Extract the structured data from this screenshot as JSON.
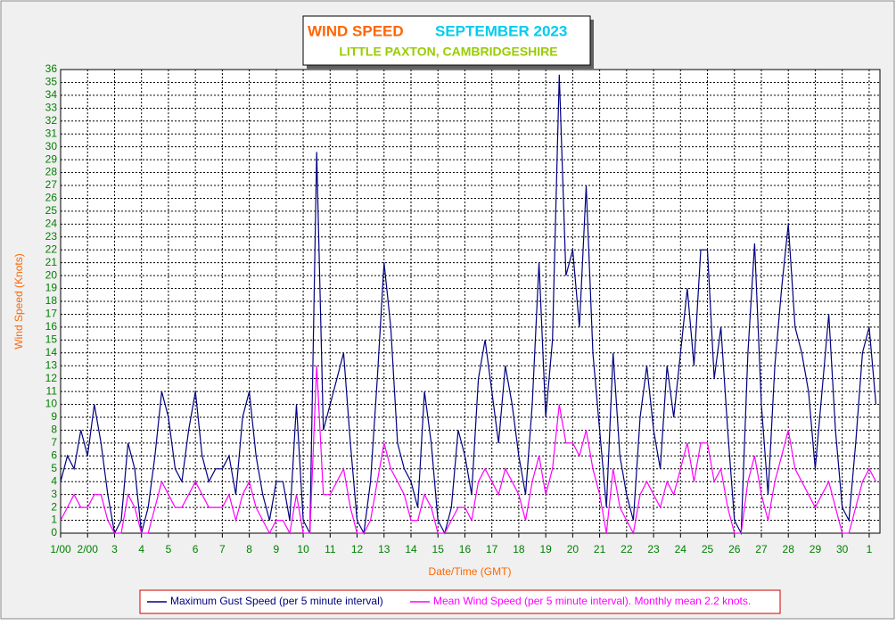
{
  "chart_data": {
    "type": "line",
    "title": "WIND SPEED",
    "subtitle": "SEPTEMBER 2023",
    "location": "LITTLE PAXTON, CAMBRIDGESHIRE",
    "ylabel": "Wind Speed (Knots)",
    "xlabel": "Date/Time (GMT)",
    "xlim": [
      0,
      30.4
    ],
    "ylim": [
      0,
      36
    ],
    "grid": true,
    "yticks": [
      0,
      1,
      2,
      3,
      4,
      5,
      6,
      7,
      8,
      9,
      10,
      11,
      12,
      13,
      14,
      15,
      16,
      17,
      18,
      19,
      20,
      21,
      22,
      23,
      24,
      25,
      26,
      27,
      28,
      29,
      30,
      31,
      32,
      33,
      34,
      35,
      36
    ],
    "xticks": [
      {
        "value": 0,
        "label": "1/00"
      },
      {
        "value": 1,
        "label": "2/00"
      },
      {
        "value": 2,
        "label": "3"
      },
      {
        "value": 3,
        "label": "4"
      },
      {
        "value": 4,
        "label": "5"
      },
      {
        "value": 5,
        "label": "6"
      },
      {
        "value": 6,
        "label": "7"
      },
      {
        "value": 7,
        "label": "8"
      },
      {
        "value": 8,
        "label": "9"
      },
      {
        "value": 9,
        "label": "10"
      },
      {
        "value": 10,
        "label": "11"
      },
      {
        "value": 11,
        "label": "12"
      },
      {
        "value": 12,
        "label": "13"
      },
      {
        "value": 13,
        "label": "14"
      },
      {
        "value": 14,
        "label": "15"
      },
      {
        "value": 15,
        "label": "16"
      },
      {
        "value": 16,
        "label": "17"
      },
      {
        "value": 17,
        "label": "18"
      },
      {
        "value": 18,
        "label": "19"
      },
      {
        "value": 19,
        "label": "20"
      },
      {
        "value": 20,
        "label": "21"
      },
      {
        "value": 21,
        "label": "22"
      },
      {
        "value": 22,
        "label": "23"
      },
      {
        "value": 23,
        "label": "24"
      },
      {
        "value": 24,
        "label": "25"
      },
      {
        "value": 25,
        "label": "26"
      },
      {
        "value": 26,
        "label": "27"
      },
      {
        "value": 27,
        "label": "28"
      },
      {
        "value": 28,
        "label": "29"
      },
      {
        "value": 29,
        "label": "30"
      },
      {
        "value": 30,
        "label": "1"
      }
    ],
    "x": [
      0,
      0.25,
      0.5,
      0.75,
      1,
      1.25,
      1.5,
      1.75,
      2,
      2.25,
      2.5,
      2.75,
      3,
      3.25,
      3.5,
      3.75,
      4,
      4.25,
      4.5,
      4.75,
      5,
      5.25,
      5.5,
      5.75,
      6,
      6.25,
      6.5,
      6.75,
      7,
      7.25,
      7.5,
      7.75,
      8,
      8.25,
      8.5,
      8.75,
      9,
      9.25,
      9.5,
      9.75,
      10,
      10.25,
      10.5,
      10.75,
      11,
      11.25,
      11.5,
      11.75,
      12,
      12.25,
      12.5,
      12.75,
      13,
      13.25,
      13.5,
      13.75,
      14,
      14.25,
      14.5,
      14.75,
      15,
      15.25,
      15.5,
      15.75,
      16,
      16.25,
      16.5,
      16.75,
      17,
      17.25,
      17.5,
      17.75,
      18,
      18.25,
      18.5,
      18.75,
      19,
      19.25,
      19.5,
      19.75,
      20,
      20.25,
      20.5,
      20.75,
      21,
      21.25,
      21.5,
      21.75,
      22,
      22.25,
      22.5,
      22.75,
      23,
      23.25,
      23.5,
      23.75,
      24,
      24.25,
      24.5,
      24.75,
      25,
      25.25,
      25.5,
      25.75,
      26,
      26.25,
      26.5,
      26.75,
      27,
      27.25,
      27.5,
      27.75,
      28,
      28.25,
      28.5,
      28.75,
      29,
      29.25,
      29.5,
      29.75,
      30,
      30.25
    ],
    "series": [
      {
        "name": "Maximum Gust Speed (per 5 minute interval)",
        "color": "#000080",
        "values": [
          4,
          6,
          5,
          8,
          6,
          10,
          7,
          3,
          0,
          1,
          7,
          5,
          0,
          2,
          6,
          11,
          9,
          5,
          4,
          8,
          11,
          6,
          4,
          5,
          5,
          6,
          3,
          9,
          11,
          6,
          3,
          1,
          4,
          4,
          1,
          10,
          1,
          0,
          29.6,
          8,
          10,
          12,
          14,
          7,
          1,
          0,
          4,
          12,
          21,
          16,
          7,
          5,
          4,
          2,
          11,
          7,
          1,
          0,
          2,
          8,
          6,
          3,
          12,
          15,
          11,
          7,
          13,
          10,
          6,
          3,
          10,
          21,
          9,
          15,
          35.6,
          20,
          22,
          16,
          27,
          14,
          8,
          2,
          14,
          6,
          3,
          1,
          9,
          13,
          8,
          5,
          13,
          9,
          14,
          19,
          13,
          22,
          22,
          12,
          16,
          8,
          1,
          0,
          14,
          22.5,
          10,
          3,
          13,
          19,
          24,
          16,
          14,
          11,
          5,
          11,
          17,
          8,
          2,
          1,
          7,
          14,
          16,
          10
        ]
      },
      {
        "name": "Mean Wind Speed (per 5 minute interval). Monthly mean 2.2 knots.",
        "color": "#ff00ff",
        "values": [
          1,
          2,
          3,
          2,
          2,
          3,
          3,
          1,
          0,
          0,
          3,
          2,
          0,
          0,
          2,
          4,
          3,
          2,
          2,
          3,
          4,
          3,
          2,
          2,
          2,
          3,
          1,
          3,
          4,
          2,
          1,
          0,
          1,
          1,
          0,
          3,
          0,
          0,
          13,
          3,
          3,
          4,
          5,
          2,
          0,
          0,
          1,
          4,
          7,
          5,
          4,
          3,
          1,
          1,
          3,
          2,
          0,
          0,
          1,
          2,
          2,
          1,
          4,
          5,
          4,
          3,
          5,
          4,
          3,
          1,
          4,
          6,
          3,
          5,
          10,
          7,
          7,
          6,
          8,
          5,
          3,
          0,
          5,
          2,
          1,
          0,
          3,
          4,
          3,
          2,
          4,
          3,
          5,
          7,
          4,
          7,
          7,
          4,
          5,
          2,
          0,
          0,
          4,
          6,
          3,
          1,
          4,
          6,
          8,
          5,
          4,
          3,
          2,
          3,
          4,
          2,
          0,
          0,
          2,
          4,
          5,
          4
        ]
      }
    ]
  }
}
